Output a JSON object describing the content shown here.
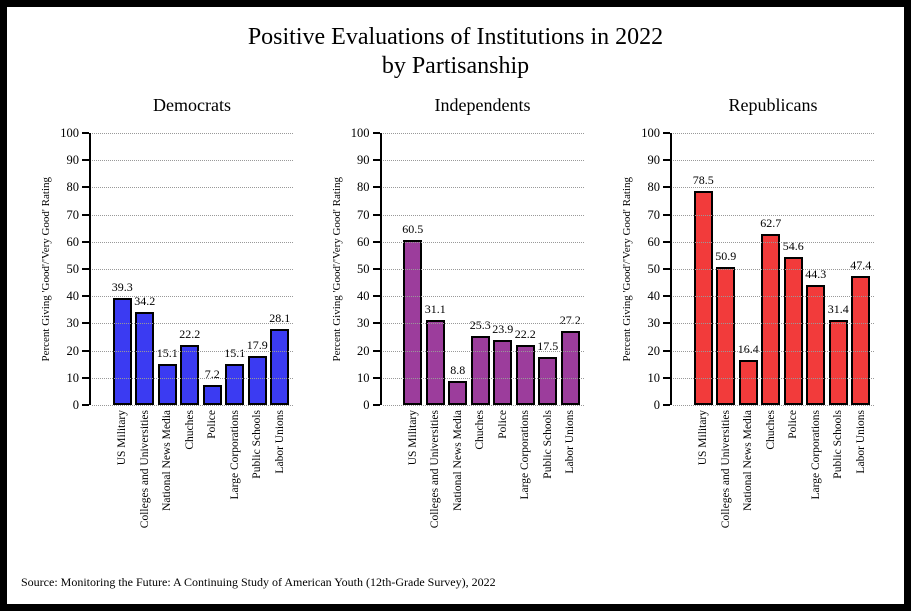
{
  "title": {
    "line1": "Positive Evaluations of Institutions in 2022",
    "line2": "by Partisanship"
  },
  "source": "Source: Monitoring the Future: A Continuing Study of American Youth (12th-Grade Survey), 2022",
  "colors": {
    "democrats_bar": "#3b3bf2",
    "independents_bar": "#9c3d9c",
    "republicans_bar": "#f23b3b",
    "bar_outline": "#000000",
    "gridline": "#999999"
  },
  "chart_data": {
    "type": "bar",
    "layout": "three side-by-side panels, dotted horizontal gridlines, x tick labels rotated 90 degrees reading bottom-to-top",
    "categories": [
      "US Military",
      "Colleges and Universities",
      "National News Media",
      "Chuches",
      "Police",
      "Large Corporations",
      "Public Schools",
      "Labor Unions"
    ],
    "ylabel": "Percent Giving 'Good'/'Very Good' Rating",
    "ylim": [
      0,
      100
    ],
    "yticks": [
      0,
      10,
      20,
      30,
      40,
      50,
      60,
      70,
      80,
      90,
      100
    ],
    "panels": [
      {
        "title": "Democrats",
        "color": "#3b3bf2",
        "values": [
          39.3,
          34.2,
          15.1,
          22.2,
          7.2,
          15.1,
          17.9,
          28.1
        ]
      },
      {
        "title": "Independents",
        "color": "#9c3d9c",
        "values": [
          60.5,
          31.1,
          8.8,
          25.3,
          23.9,
          22.2,
          17.5,
          27.2
        ]
      },
      {
        "title": "Republicans",
        "color": "#f23b3b",
        "values": [
          78.5,
          50.9,
          16.4,
          62.7,
          54.6,
          44.3,
          31.4,
          47.4
        ]
      }
    ]
  }
}
